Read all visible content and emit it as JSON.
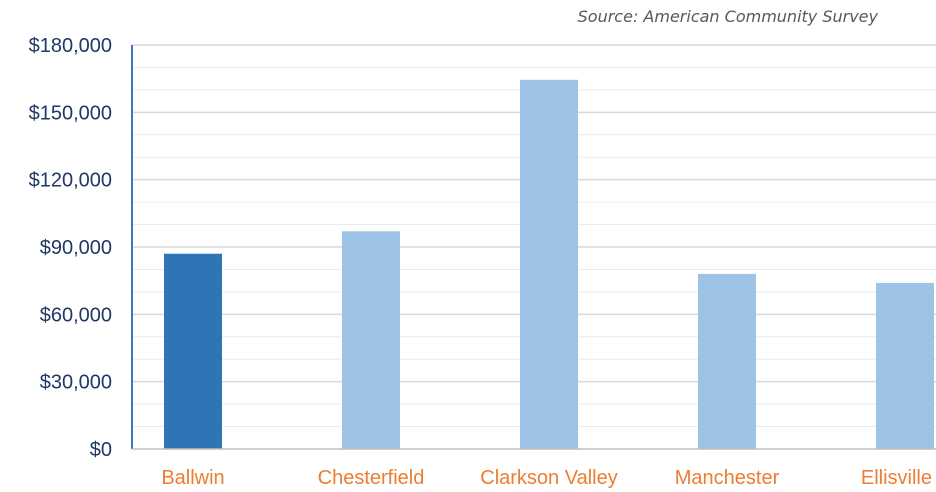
{
  "source_note": "Source:  American Community Survey",
  "colors": {
    "highlight_bar": "#2e75b6",
    "bar": "#9dc3e6",
    "x_label": "#ed7d31",
    "y_label": "#1f3864",
    "grid": "#d9d9d9",
    "axis": "#4472c4"
  },
  "chart_data": {
    "type": "bar",
    "categories": [
      "Ballwin",
      "Chesterfield",
      "Clarkson Valley",
      "Manchester",
      "Ellisville"
    ],
    "values": [
      87000,
      97000,
      164500,
      78000,
      74000
    ],
    "highlight_index": 0,
    "ylim": [
      0,
      180000
    ],
    "y_ticks": [
      0,
      30000,
      60000,
      90000,
      120000,
      150000,
      180000
    ],
    "y_tick_labels": [
      "$0",
      "$30,000",
      "$60,000",
      "$90,000",
      "$120,000",
      "$150,000",
      "$180,000"
    ],
    "grid": true,
    "legend": "none"
  }
}
